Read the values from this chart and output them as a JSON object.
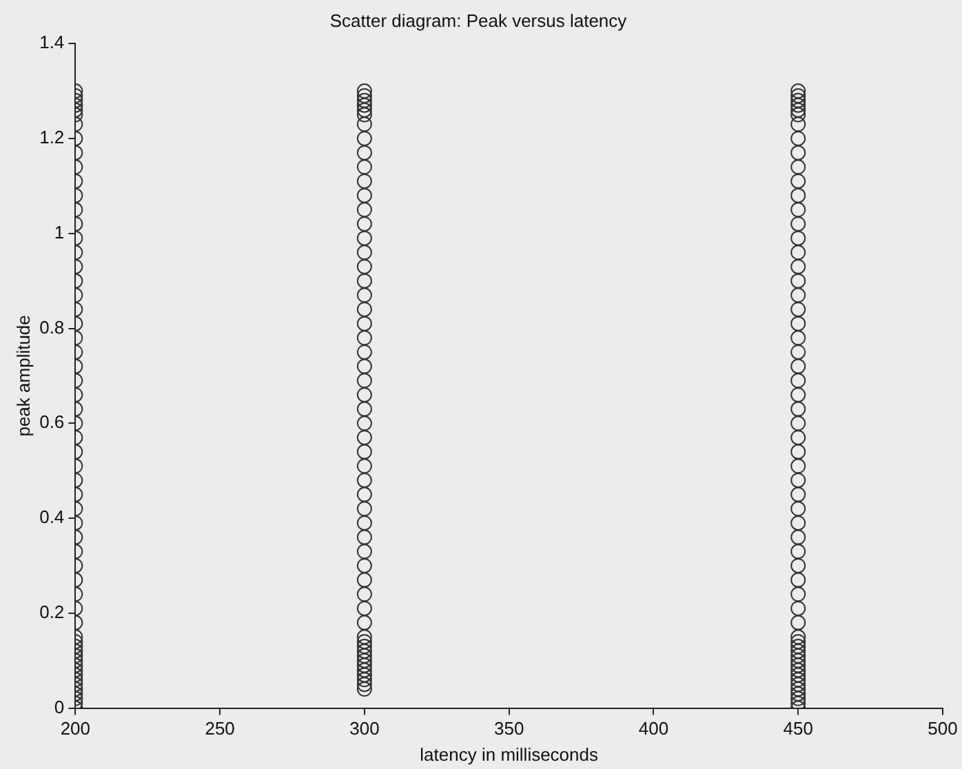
{
  "chart_data": {
    "type": "scatter",
    "title": "Scatter diagram: Peak versus latency",
    "xlabel": "latency in milliseconds",
    "ylabel": "peak amplitude",
    "xlim": [
      200,
      500
    ],
    "xticks": [
      200,
      250,
      300,
      350,
      400,
      450,
      500
    ],
    "ylim": [
      0,
      1.4
    ],
    "yticks": [
      0,
      0.2,
      0.4,
      0.6,
      0.8,
      1,
      1.2,
      1.4
    ],
    "grid": false,
    "legend": false,
    "marker": "circle",
    "series": [
      {
        "color": "#333333",
        "x": [
          200,
          200,
          200,
          200,
          200,
          200,
          200,
          200,
          200,
          200,
          200,
          200,
          200,
          200,
          200,
          200,
          200,
          200,
          200,
          200,
          200,
          200,
          200,
          200,
          200,
          200,
          200,
          200,
          200,
          200,
          200,
          200,
          200,
          200,
          200,
          200,
          200,
          200,
          200,
          200,
          200,
          200,
          200,
          200,
          200,
          200,
          200,
          200,
          200,
          200,
          200,
          200,
          200,
          200,
          200,
          200,
          200,
          200
        ],
        "values": [
          0,
          0.01,
          0.02,
          0.03,
          0.04,
          0.05,
          0.06,
          0.07,
          0.08,
          0.09,
          0.1,
          0.11,
          0.12,
          0.13,
          0.14,
          0.15,
          0.18,
          0.21,
          0.24,
          0.27,
          0.3,
          0.33,
          0.36,
          0.39,
          0.42,
          0.45,
          0.48,
          0.51,
          0.54,
          0.57,
          0.6,
          0.63,
          0.66,
          0.69,
          0.72,
          0.75,
          0.78,
          0.81,
          0.84,
          0.87,
          0.9,
          0.93,
          0.96,
          0.99,
          1.02,
          1.05,
          1.08,
          1.11,
          1.14,
          1.17,
          1.2,
          1.23,
          1.25,
          1.26,
          1.27,
          1.28,
          1.29,
          1.3
        ]
      },
      {
        "color": "#333333",
        "x": [
          300,
          300,
          300,
          300,
          300,
          300,
          300,
          300,
          300,
          300,
          300,
          300,
          300,
          300,
          300,
          300,
          300,
          300,
          300,
          300,
          300,
          300,
          300,
          300,
          300,
          300,
          300,
          300,
          300,
          300,
          300,
          300,
          300,
          300,
          300,
          300,
          300,
          300,
          300,
          300,
          300,
          300,
          300,
          300,
          300,
          300,
          300,
          300,
          300,
          300,
          300,
          300,
          300,
          300
        ],
        "values": [
          0.04,
          0.05,
          0.06,
          0.07,
          0.08,
          0.09,
          0.1,
          0.11,
          0.12,
          0.13,
          0.14,
          0.15,
          0.18,
          0.21,
          0.24,
          0.27,
          0.3,
          0.33,
          0.36,
          0.39,
          0.42,
          0.45,
          0.48,
          0.51,
          0.54,
          0.57,
          0.6,
          0.63,
          0.66,
          0.69,
          0.72,
          0.75,
          0.78,
          0.81,
          0.84,
          0.87,
          0.9,
          0.93,
          0.96,
          0.99,
          1.02,
          1.05,
          1.08,
          1.11,
          1.14,
          1.17,
          1.2,
          1.23,
          1.25,
          1.26,
          1.27,
          1.28,
          1.29,
          1.3
        ]
      },
      {
        "color": "#333333",
        "x": [
          450,
          450,
          450,
          450,
          450,
          450,
          450,
          450,
          450,
          450,
          450,
          450,
          450,
          450,
          450,
          450,
          450,
          450,
          450,
          450,
          450,
          450,
          450,
          450,
          450,
          450,
          450,
          450,
          450,
          450,
          450,
          450,
          450,
          450,
          450,
          450,
          450,
          450,
          450,
          450,
          450,
          450,
          450,
          450,
          450,
          450,
          450,
          450,
          450,
          450,
          450,
          450,
          450,
          450,
          450,
          450,
          450,
          450
        ],
        "values": [
          0,
          0.01,
          0.02,
          0.03,
          0.04,
          0.05,
          0.06,
          0.07,
          0.08,
          0.09,
          0.1,
          0.11,
          0.12,
          0.13,
          0.14,
          0.15,
          0.18,
          0.21,
          0.24,
          0.27,
          0.3,
          0.33,
          0.36,
          0.39,
          0.42,
          0.45,
          0.48,
          0.51,
          0.54,
          0.57,
          0.6,
          0.63,
          0.66,
          0.69,
          0.72,
          0.75,
          0.78,
          0.81,
          0.84,
          0.87,
          0.9,
          0.93,
          0.96,
          0.99,
          1.02,
          1.05,
          1.08,
          1.11,
          1.14,
          1.17,
          1.2,
          1.23,
          1.25,
          1.26,
          1.27,
          1.28,
          1.29,
          1.3
        ]
      }
    ]
  }
}
